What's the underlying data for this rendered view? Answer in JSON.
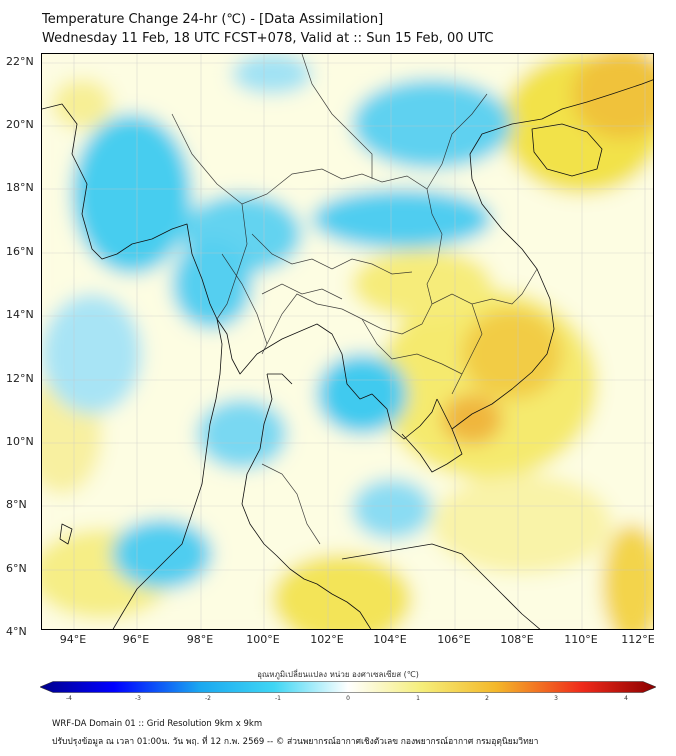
{
  "header": {
    "title": "Temperature Change 24-hr (℃) - [Data Assimilation]",
    "subtitle": "Wednesday 11 Feb, 18 UTC FCST+078, Valid at :: Sun 15 Feb, 00 UTC"
  },
  "map": {
    "lat_labels": [
      "22°N",
      "20°N",
      "18°N",
      "16°N",
      "14°N",
      "12°N",
      "10°N",
      "8°N",
      "6°N",
      "4°N"
    ],
    "lon_labels": [
      "94°E",
      "96°E",
      "98°E",
      "100°E",
      "102°E",
      "104°E",
      "106°E",
      "108°E",
      "110°E",
      "112°E"
    ],
    "extent": {
      "lon": [
        93,
        112.3
      ],
      "lat": [
        4,
        22.1
      ]
    },
    "colors": {
      "cool": "#29c6ee",
      "cool_light": "#bfe9f8",
      "warm": "#f2e64a",
      "warm_deep": "#f0b83a",
      "neutral": "#fdfde4"
    }
  },
  "colorbar": {
    "label": "อุณหภูมิเปลี่ยนแปลง หน่วย องศาเซลเซียส (℃)",
    "ticks": [
      "-4",
      "-3",
      "-2",
      "-1",
      "0",
      "1",
      "2",
      "3",
      "4"
    ],
    "range": [
      -4,
      4
    ],
    "stops": [
      "#00008b",
      "#0000ff",
      "#1aa8f0",
      "#3fd6f4",
      "#ffffff",
      "#f5ee7a",
      "#f4b82a",
      "#ef2a1a",
      "#8b0000"
    ]
  },
  "footer": {
    "line1": "WRF-DA Domain 01 :: Grid Resolution 9km x 9km",
    "line2": "ปรับปรุงข้อมูล ณ เวลา 01:00น. วัน พฤ. ที่ 12 ก.พ. 2569 -- © ส่วนพยากรณ์อากาศเชิงตัวเลข กองพยากรณ์อากาศ กรมอุตุนิยมวิทยา"
  }
}
